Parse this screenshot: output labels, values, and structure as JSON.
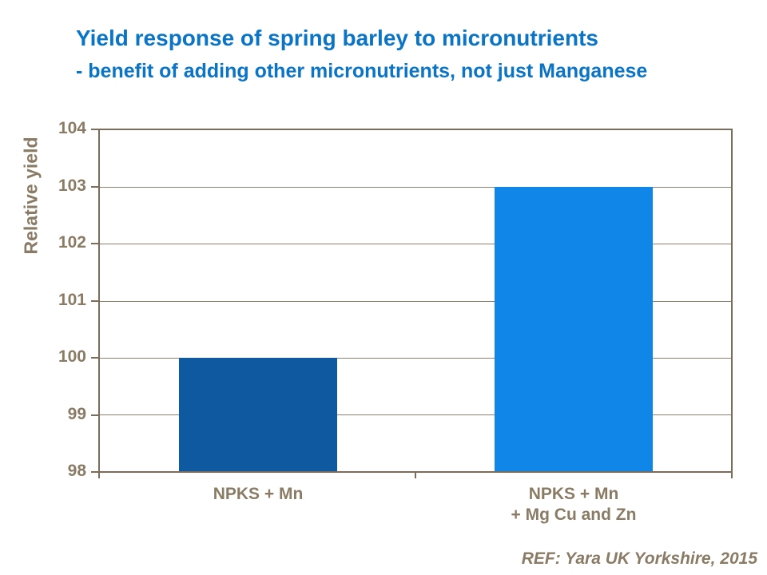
{
  "header": {
    "title": "Yield response of spring barley to micronutrients",
    "subtitle": "- benefit of adding other micronutrients, not just Manganese"
  },
  "footer": {
    "ref": "REF: Yara UK Yorkshire, 2015"
  },
  "colors": {
    "title_blue": "#0A74C7",
    "bar_dark_blue": "#0E59A0",
    "bar_light_blue": "#1086E8",
    "axis_text_brown": "#8A7B65",
    "axis_line_brown": "#7C6C59",
    "gridline_brown": "#8E8070",
    "background": "#FFFFFF"
  },
  "chart_data": {
    "type": "bar",
    "title": "Yield response of spring barley to micronutrients",
    "subtitle": "- benefit of adding other micronutrients, not just Manganese",
    "categories": [
      "NPKS + Mn",
      "NPKS + Mn\n+ Mg Cu and Zn"
    ],
    "values": [
      100,
      103
    ],
    "bar_colors": [
      "#0E59A0",
      "#1086E8"
    ],
    "xlabel": "",
    "ylabel": "Relative yield",
    "ylim": [
      98,
      104
    ],
    "ytick_step": 1,
    "yticks": [
      98,
      99,
      100,
      101,
      102,
      103,
      104
    ],
    "grid": true,
    "legend": false,
    "annotation": "REF: Yara UK Yorkshire, 2015"
  }
}
